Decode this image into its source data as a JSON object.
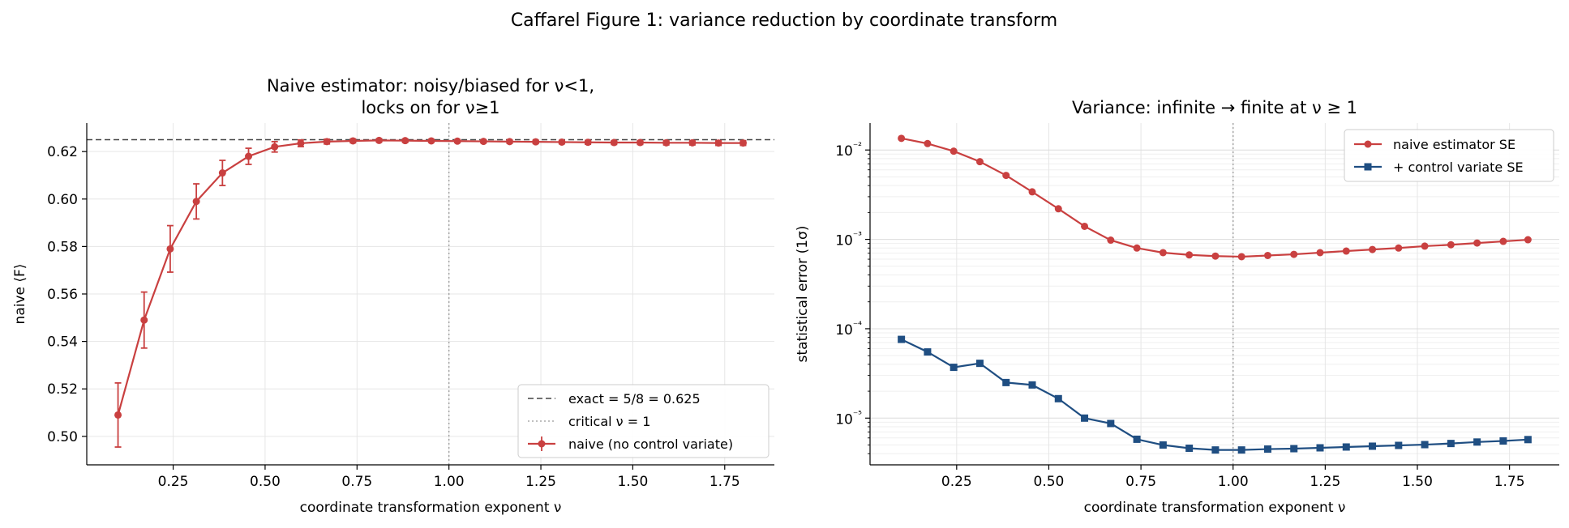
{
  "suptitle": "Caffarel Figure 1: variance reduction by coordinate transform",
  "colors": {
    "naive": "#c94040",
    "cv": "#1f4e82",
    "exact": "#444444",
    "critical": "#999999",
    "grid": "#e6e6e6"
  },
  "chart_data": [
    {
      "type": "line",
      "title": "Naive estimator: noisy/biased for ν<1,\nlocks on for ν≥1",
      "xlabel": "coordinate transformation exponent ν",
      "ylabel": "naive ⟨F⟩",
      "xlim": [
        0.015,
        1.885
      ],
      "ylim": [
        0.488,
        0.632
      ],
      "xticks": [
        0.25,
        0.5,
        0.75,
        1.0,
        1.25,
        1.5,
        1.75
      ],
      "xtick_labels": [
        "0.25",
        "0.50",
        "0.75",
        "1.00",
        "1.25",
        "1.50",
        "1.75"
      ],
      "yticks": [
        0.5,
        0.52,
        0.54,
        0.56,
        0.58,
        0.6,
        0.62
      ],
      "ytick_labels": [
        "0.50",
        "0.52",
        "0.54",
        "0.56",
        "0.58",
        "0.60",
        "0.62"
      ],
      "grid": true,
      "legend_position": "lower right",
      "hlines": [
        {
          "y": 0.625,
          "label": "exact = 5/8 = 0.625",
          "style": "dashed"
        }
      ],
      "vlines": [
        {
          "x": 1.0,
          "label": "critical ν = 1",
          "style": "dotted"
        }
      ],
      "series": [
        {
          "name": "naive (no control variate)",
          "x": [
            0.1,
            0.171,
            0.242,
            0.313,
            0.384,
            0.455,
            0.526,
            0.597,
            0.668,
            0.739,
            0.81,
            0.881,
            0.952,
            1.023,
            1.094,
            1.165,
            1.236,
            1.307,
            1.378,
            1.449,
            1.52,
            1.591,
            1.662,
            1.733,
            1.8
          ],
          "y": [
            0.509,
            0.549,
            0.579,
            0.599,
            0.611,
            0.618,
            0.622,
            0.6235,
            0.6242,
            0.6245,
            0.6247,
            0.6246,
            0.6245,
            0.6244,
            0.6243,
            0.6242,
            0.6241,
            0.624,
            0.6239,
            0.6238,
            0.6238,
            0.6237,
            0.6237,
            0.6236,
            0.6236
          ],
          "yerr": [
            0.0135,
            0.0118,
            0.0098,
            0.0074,
            0.0053,
            0.0034,
            0.0022,
            0.0014,
            0.001,
            0.0008,
            0.0007,
            0.0007,
            0.0006,
            0.0006,
            0.0006,
            0.0007,
            0.0007,
            0.0007,
            0.0008,
            0.0008,
            0.0008,
            0.0009,
            0.0009,
            0.001,
            0.001
          ]
        }
      ]
    },
    {
      "type": "line",
      "title": "Variance: infinite → finite at ν ≥ 1",
      "xlabel": "coordinate transformation exponent ν",
      "ylabel": "statistical error (1σ)",
      "yscale": "log",
      "xlim": [
        0.015,
        1.885
      ],
      "ylim": [
        3e-06,
        0.02
      ],
      "xticks": [
        0.25,
        0.5,
        0.75,
        1.0,
        1.25,
        1.5,
        1.75
      ],
      "xtick_labels": [
        "0.25",
        "0.50",
        "0.75",
        "1.00",
        "1.25",
        "1.50",
        "1.75"
      ],
      "yticks": [
        1e-05,
        0.0001,
        0.001,
        0.01
      ],
      "ytick_labels": [
        "10⁻⁵",
        "10⁻⁴",
        "10⁻³",
        "10⁻²"
      ],
      "grid": true,
      "legend_position": "upper right",
      "vlines": [
        {
          "x": 1.0,
          "style": "dotted"
        }
      ],
      "series": [
        {
          "name": "naive estimator SE",
          "marker": "circle",
          "x": [
            0.1,
            0.171,
            0.242,
            0.313,
            0.384,
            0.455,
            0.526,
            0.597,
            0.668,
            0.739,
            0.81,
            0.881,
            0.952,
            1.023,
            1.094,
            1.165,
            1.236,
            1.307,
            1.378,
            1.449,
            1.52,
            1.591,
            1.662,
            1.733,
            1.8
          ],
          "y": [
            0.0135,
            0.0118,
            0.0097,
            0.0074,
            0.0052,
            0.0034,
            0.0022,
            0.0014,
            0.00098,
            0.0008,
            0.00071,
            0.00067,
            0.00065,
            0.00064,
            0.00066,
            0.00068,
            0.00071,
            0.00074,
            0.00077,
            0.0008,
            0.00084,
            0.00087,
            0.00091,
            0.00095,
            0.00099
          ]
        },
        {
          "name": "+ control variate SE",
          "marker": "square",
          "x": [
            0.1,
            0.171,
            0.242,
            0.313,
            0.384,
            0.455,
            0.526,
            0.597,
            0.668,
            0.739,
            0.81,
            0.881,
            0.952,
            1.023,
            1.094,
            1.165,
            1.236,
            1.307,
            1.378,
            1.449,
            1.52,
            1.591,
            1.662,
            1.733,
            1.8
          ],
          "y": [
            7.6e-05,
            5.5e-05,
            3.7e-05,
            4.1e-05,
            2.5e-05,
            2.35e-05,
            1.65e-05,
            1e-05,
            8.7e-06,
            5.8e-06,
            5e-06,
            4.6e-06,
            4.4e-06,
            4.4e-06,
            4.5e-06,
            4.55e-06,
            4.65e-06,
            4.75e-06,
            4.85e-06,
            4.95e-06,
            5.05e-06,
            5.2e-06,
            5.4e-06,
            5.55e-06,
            5.75e-06
          ]
        }
      ]
    }
  ]
}
